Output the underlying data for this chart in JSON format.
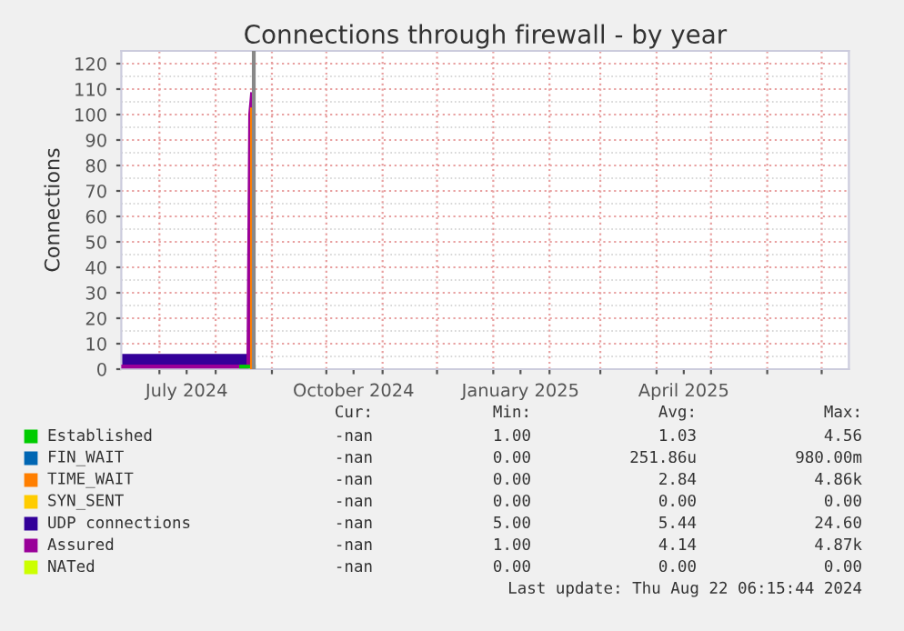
{
  "chart_data": {
    "type": "area",
    "title": "Connections through firewall - by year",
    "ylabel": "Connections",
    "xlim": [
      "2024-06-10",
      "2025-07-16"
    ],
    "ylim": [
      0,
      125
    ],
    "xticks": [
      {
        "value": "2024-07-01",
        "label": null
      },
      {
        "value": "2024-07-16",
        "label": "July 2024"
      },
      {
        "value": "2024-08-01",
        "label": null
      },
      {
        "value": "2024-09-01",
        "label": null
      },
      {
        "value": "2024-10-01",
        "label": null
      },
      {
        "value": "2024-10-16",
        "label": "October 2024"
      },
      {
        "value": "2024-11-01",
        "label": null
      },
      {
        "value": "2024-12-01",
        "label": null
      },
      {
        "value": "2025-01-01",
        "label": null
      },
      {
        "value": "2025-01-16",
        "label": "January 2025"
      },
      {
        "value": "2025-02-01",
        "label": null
      },
      {
        "value": "2025-03-01",
        "label": null
      },
      {
        "value": "2025-04-01",
        "label": null
      },
      {
        "value": "2025-04-16",
        "label": "April 2025"
      },
      {
        "value": "2025-05-01",
        "label": null
      },
      {
        "value": "2025-06-01",
        "label": null
      },
      {
        "value": "2025-07-01",
        "label": null
      }
    ],
    "yticks": [
      0,
      10,
      20,
      30,
      40,
      50,
      60,
      70,
      80,
      90,
      100,
      110,
      120
    ],
    "grid": true,
    "legend": "bottom",
    "series": [
      {
        "name": "Established",
        "color": "#00cc00",
        "type": "line",
        "x": [
          "2024-08-15",
          "2024-08-22"
        ],
        "values": [
          1,
          1
        ]
      },
      {
        "name": "FIN_WAIT",
        "color": "#0066b3"
      },
      {
        "name": "TIME_WAIT",
        "color": "#ff7f00",
        "type": "line",
        "x": [
          "2024-08-21",
          "2024-08-21"
        ],
        "values": [
          0,
          102
        ]
      },
      {
        "name": "SYN_SENT",
        "color": "#ffcc00"
      },
      {
        "name": "UDP connections",
        "color": "#330099",
        "x": [
          "2024-06-10",
          "2024-08-19"
        ],
        "values": [
          6,
          6
        ]
      },
      {
        "name": "Assured",
        "color": "#990099",
        "type": "line",
        "x": [
          "2024-06-10",
          "2024-08-19",
          "2024-08-20",
          "2024-08-21"
        ],
        "values": [
          1,
          1,
          100,
          108
        ]
      },
      {
        "name": "NATed",
        "color": "#ccff00"
      },
      {
        "color": "#888888",
        "type": "line",
        "x": [
          "2024-08-22",
          "2024-08-22"
        ],
        "values": [
          0,
          125
        ]
      }
    ],
    "annotations": [
      "Cur:",
      "Min:",
      "Avg:",
      "Max:",
      "-nan",
      "1.00",
      "1.03",
      "4.56",
      "-nan",
      "0.00",
      "251.86u",
      "980.00m",
      "-nan",
      "0.00",
      "2.84",
      "4.86k",
      "-nan",
      "0.00",
      "0.00",
      "0.00",
      "-nan",
      "5.00",
      "5.44",
      "24.60",
      "-nan",
      "1.00",
      "4.14",
      "4.87k",
      "-nan",
      "0.00",
      "0.00",
      "0.00",
      "Last update: Thu Aug 22 06:15:44 2024"
    ]
  }
}
